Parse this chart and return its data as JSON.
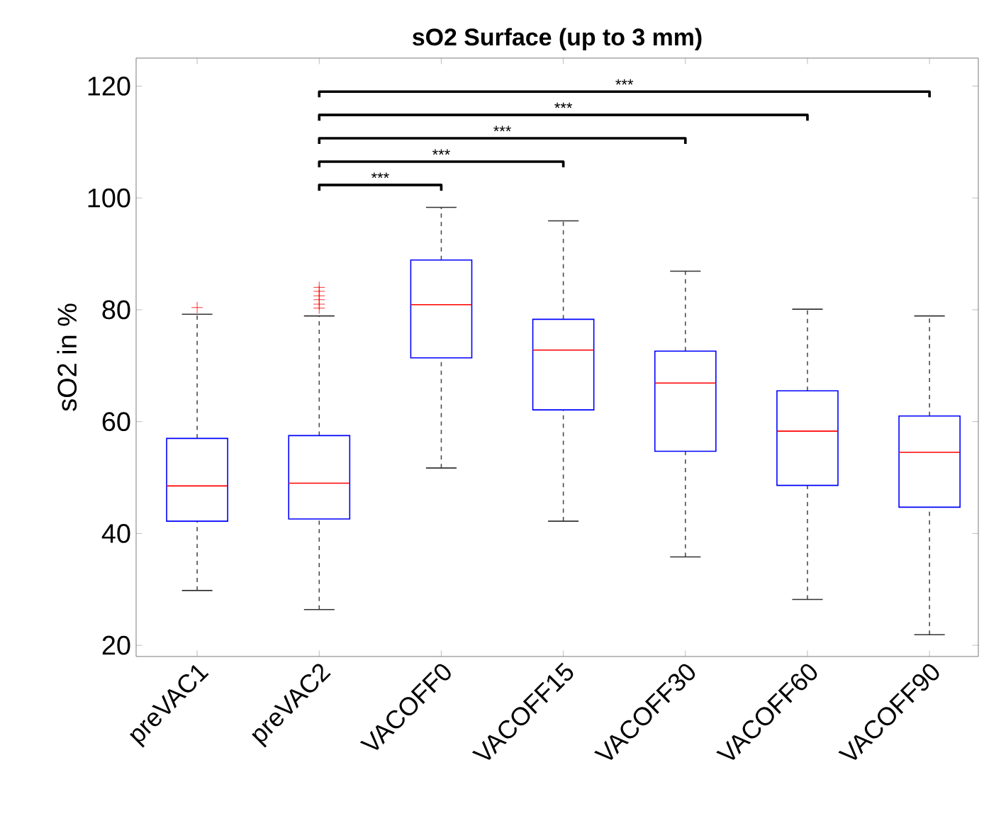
{
  "chart_data": {
    "type": "box",
    "title": "sO2 Surface (up to 3 mm)",
    "ylabel": "sO2 in %",
    "categories": [
      "preVAC1",
      "preVAC2",
      "VACOFF0",
      "VACOFF15",
      "VACOFF30",
      "VACOFF60",
      "VACOFF90"
    ],
    "series": [
      {
        "color": "#0000ff",
        "boxes": [
          {
            "low": 29.8,
            "q1": 42.2,
            "median": 48.5,
            "q3": 57.0,
            "high": 79.2,
            "outliers": [
              80.4
            ]
          },
          {
            "low": 26.4,
            "q1": 42.6,
            "median": 49.0,
            "q3": 57.5,
            "high": 78.9,
            "outliers": [
              80.3,
              81.0,
              81.8,
              82.5,
              83.3,
              84.0
            ]
          },
          {
            "low": 51.7,
            "q1": 71.4,
            "median": 80.9,
            "q3": 88.9,
            "high": 98.3
          },
          {
            "low": 42.2,
            "q1": 62.1,
            "median": 72.8,
            "q3": 78.3,
            "high": 95.9
          },
          {
            "low": 35.8,
            "q1": 54.7,
            "median": 66.9,
            "q3": 72.6,
            "high": 86.9
          },
          {
            "low": 28.2,
            "q1": 48.6,
            "median": 58.3,
            "q3": 65.5,
            "high": 80.1
          },
          {
            "low": 21.9,
            "q1": 44.7,
            "median": 54.5,
            "q3": 61.0,
            "high": 78.9
          }
        ]
      }
    ],
    "ylim": [
      18,
      125
    ],
    "yticks": [
      20,
      40,
      60,
      80,
      100,
      120
    ],
    "annotations": [
      "***",
      "***",
      "***",
      "***",
      "***"
    ]
  }
}
